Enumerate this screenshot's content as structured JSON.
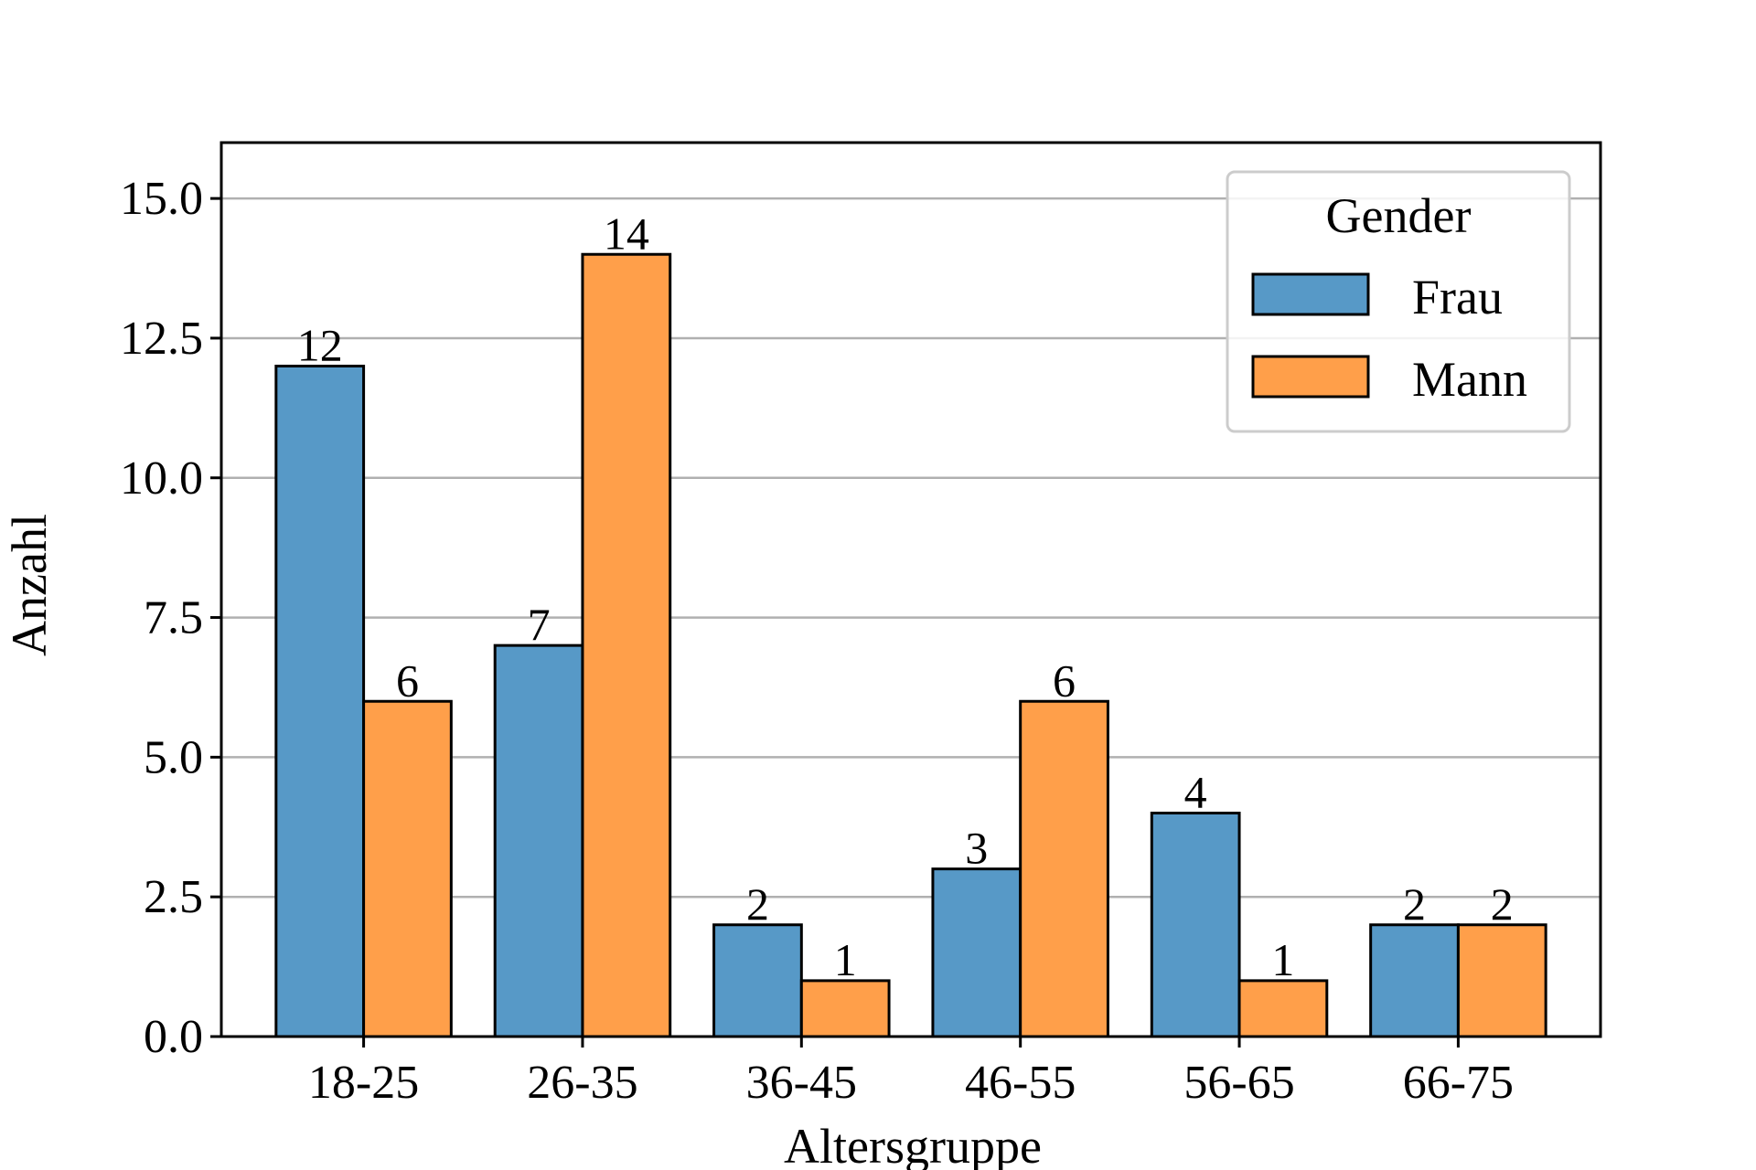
{
  "chart_data": {
    "type": "bar",
    "categories": [
      "18-25",
      "26-35",
      "36-45",
      "46-55",
      "56-65",
      "66-75"
    ],
    "series": [
      {
        "name": "Frau",
        "values": [
          12,
          7,
          2,
          3,
          4,
          2
        ],
        "color": "#5799c7"
      },
      {
        "name": "Mann",
        "values": [
          6,
          14,
          1,
          6,
          1,
          2
        ],
        "color": "#ff9f4a"
      }
    ],
    "xlabel": "Altersgruppe",
    "ylabel": "Anzahl",
    "ylim": [
      0,
      16
    ],
    "yticks": [
      0,
      2.5,
      5,
      7.5,
      10,
      12.5,
      15
    ],
    "ytick_labels": [
      "0.0",
      "2.5",
      "5.0",
      "7.5",
      "10.0",
      "12.5",
      "15.0"
    ],
    "grid": "y",
    "legend": {
      "title": "Gender",
      "position": "top-right"
    }
  }
}
